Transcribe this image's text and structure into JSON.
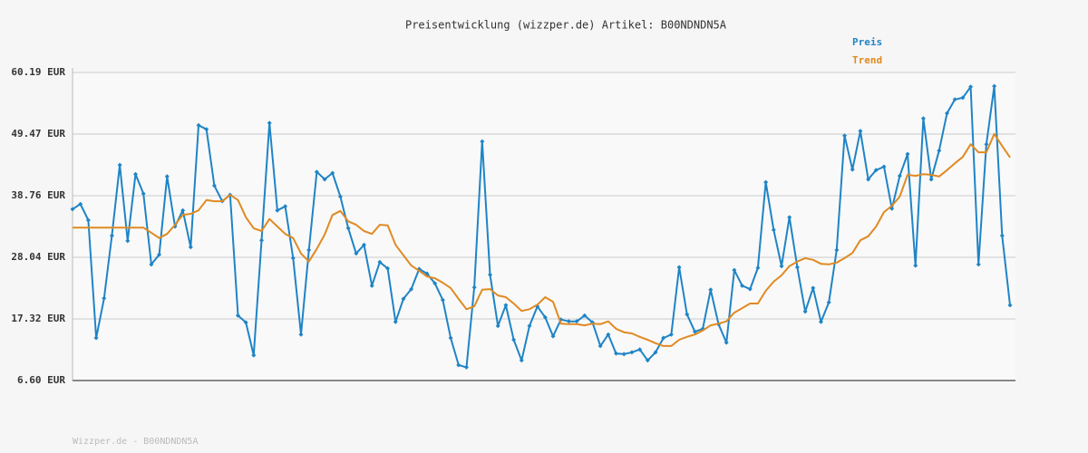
{
  "chart_data": {
    "type": "line",
    "title": "Preisentwicklung (wizzper.de) Artikel: B00NDNDN5A",
    "footer": "Wizzper.de - B00NDNDN5A",
    "ylim": [
      6.6,
      60.19
    ],
    "yticks": [
      {
        "value": 6.6,
        "label": "6.60 EUR"
      },
      {
        "value": 17.32,
        "label": "17.32 EUR"
      },
      {
        "value": 28.04,
        "label": "28.04 EUR"
      },
      {
        "value": 38.76,
        "label": "38.76 EUR"
      },
      {
        "value": 49.47,
        "label": "49.47 EUR"
      },
      {
        "value": 60.19,
        "label": "60.19 EUR"
      }
    ],
    "grid": true,
    "legend": "top-right",
    "series": [
      {
        "name": "Preis",
        "color": "#1f84c6",
        "markers": true,
        "values": [
          36.4,
          37.3,
          34.5,
          14.0,
          20.9,
          31.8,
          44.1,
          30.9,
          42.5,
          39.1,
          26.8,
          28.5,
          42.1,
          33.4,
          36.2,
          29.8,
          51.0,
          50.3,
          40.5,
          37.8,
          38.9,
          17.9,
          16.7,
          11.0,
          31.0,
          51.4,
          36.2,
          36.9,
          27.9,
          14.6,
          29.3,
          42.9,
          41.6,
          42.7,
          38.6,
          33.1,
          28.7,
          30.2,
          23.1,
          27.2,
          26.1,
          16.8,
          20.8,
          22.5,
          26.0,
          25.2,
          23.5,
          20.6,
          14.0,
          9.3,
          8.9,
          22.8,
          48.2,
          25.0,
          16.1,
          19.7,
          13.7,
          10.1,
          16.1,
          19.5,
          17.6,
          14.3,
          17.2,
          16.9,
          16.9,
          17.9,
          16.7,
          12.6,
          14.6,
          11.3,
          11.2,
          11.5,
          12.0,
          10.1,
          11.5,
          14.0,
          14.6,
          26.3,
          18.1,
          15.1,
          15.6,
          22.4,
          16.4,
          13.2,
          25.8,
          23.1,
          22.5,
          26.2,
          41.1,
          32.8,
          26.5,
          35.0,
          26.3,
          18.6,
          22.7,
          16.8,
          20.2,
          29.3,
          49.2,
          43.3,
          50.0,
          41.6,
          43.2,
          43.8,
          36.5,
          42.2,
          46.0,
          26.6,
          52.2,
          41.6,
          46.6,
          53.1,
          55.5,
          55.8,
          57.7,
          26.8,
          47.7,
          57.8,
          31.8,
          19.7
        ]
      },
      {
        "name": "Trend",
        "color": "#e08a22",
        "markers": false,
        "values": [
          33.2,
          33.2,
          33.2,
          33.2,
          33.2,
          33.2,
          33.2,
          33.2,
          33.2,
          33.2,
          32.3,
          31.4,
          32.1,
          33.7,
          35.4,
          35.6,
          36.2,
          38.0,
          37.8,
          37.8,
          38.9,
          38.0,
          35.0,
          33.1,
          32.6,
          34.7,
          33.4,
          32.1,
          31.4,
          28.7,
          27.3,
          29.5,
          32.0,
          35.4,
          36.1,
          34.3,
          33.7,
          32.6,
          32.1,
          33.7,
          33.6,
          30.2,
          28.4,
          26.6,
          25.7,
          24.7,
          24.4,
          23.6,
          22.7,
          20.8,
          19.0,
          19.5,
          22.4,
          22.5,
          21.4,
          21.1,
          20.0,
          18.7,
          19.0,
          19.8,
          21.1,
          20.3,
          16.5,
          16.4,
          16.4,
          16.2,
          16.5,
          16.4,
          16.9,
          15.6,
          15.0,
          14.8,
          14.2,
          13.7,
          13.1,
          12.6,
          12.6,
          13.7,
          14.2,
          14.6,
          15.3,
          16.2,
          16.5,
          16.9,
          18.4,
          19.2,
          20.0,
          20.0,
          22.2,
          23.8,
          24.9,
          26.5,
          27.3,
          27.9,
          27.6,
          26.9,
          26.8,
          27.1,
          27.9,
          28.8,
          31.0,
          31.7,
          33.4,
          35.9,
          37.0,
          38.6,
          42.4,
          42.2,
          42.5,
          42.4,
          42.1,
          43.2,
          44.4,
          45.5,
          47.7,
          46.3,
          46.3,
          49.5,
          47.4,
          45.4
        ]
      }
    ]
  }
}
